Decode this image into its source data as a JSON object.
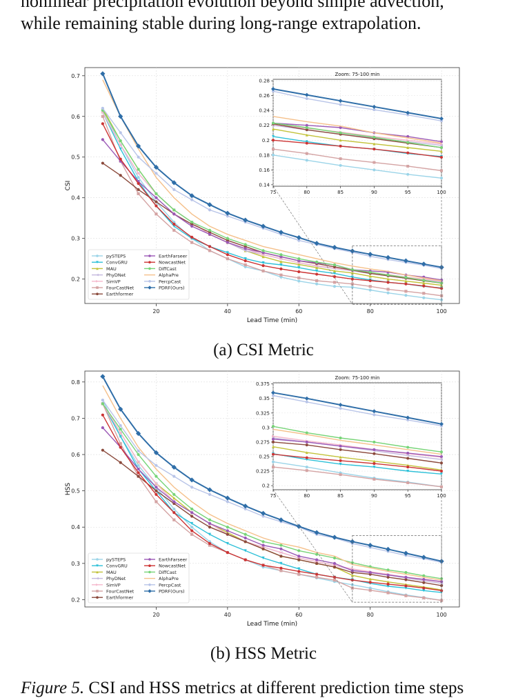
{
  "top_text": [
    "nonlinear precipitation evolution beyond simple advection,",
    "while remaining stable during long-range extrapolation."
  ],
  "captions": {
    "a": "(a) CSI Metric",
    "b": "(b) HSS Metric"
  },
  "figure_caption": {
    "label": "Figure 5.",
    "text": " CSI and HSS metrics at different prediction time steps"
  },
  "chart_data": [
    {
      "type": "line",
      "id": "csi",
      "ylabel": "CSI",
      "xlabel": "Lead Time (min)",
      "xlim": [
        0,
        105
      ],
      "ylim": [
        0.14,
        0.72
      ],
      "xticks": [
        20,
        40,
        60,
        80,
        100
      ],
      "yticks": [
        0.2,
        0.3,
        0.4,
        0.5,
        0.6,
        0.7
      ],
      "grid": true,
      "legend": "lower-left",
      "inset": {
        "title": "Zoom: 75-100 min",
        "xlim": [
          75,
          100
        ],
        "ylim": [
          0.138,
          0.282
        ],
        "xticks": [
          75,
          80,
          85,
          90,
          95,
          100
        ],
        "yticks": [
          0.14,
          0.16,
          0.18,
          0.2,
          0.22,
          0.24,
          0.26,
          0.28
        ]
      },
      "x": [
        5,
        10,
        15,
        20,
        25,
        30,
        35,
        40,
        45,
        50,
        55,
        60,
        65,
        70,
        75,
        80,
        85,
        90,
        95,
        100
      ],
      "series": [
        {
          "name": "pySTEPS",
          "color": "#9bd4e8",
          "marker": "o",
          "values": [
            0.62,
            0.53,
            0.45,
            0.39,
            0.34,
            0.3,
            0.27,
            0.25,
            0.23,
            0.22,
            0.205,
            0.195,
            0.188,
            0.182,
            0.18,
            0.173,
            0.166,
            0.16,
            0.154,
            0.149
          ]
        },
        {
          "name": "ConvGRU",
          "color": "#2ec0d8",
          "marker": "v",
          "values": [
            0.61,
            0.52,
            0.44,
            0.38,
            0.33,
            0.3,
            0.28,
            0.265,
            0.25,
            0.24,
            0.235,
            0.228,
            0.22,
            0.214,
            0.205,
            0.198,
            0.192,
            0.188,
            0.182,
            0.178
          ]
        },
        {
          "name": "MAU",
          "color": "#c2c23a",
          "marker": "^",
          "values": [
            0.62,
            0.54,
            0.47,
            0.41,
            0.37,
            0.34,
            0.31,
            0.29,
            0.27,
            0.255,
            0.243,
            0.236,
            0.228,
            0.22,
            0.215,
            0.207,
            0.2,
            0.195,
            0.19,
            0.185
          ]
        },
        {
          "name": "PhyDNet",
          "color": "#c4b8de",
          "marker": "<",
          "values": [
            0.61,
            0.53,
            0.46,
            0.41,
            0.37,
            0.34,
            0.31,
            0.29,
            0.27,
            0.26,
            0.25,
            0.24,
            0.232,
            0.226,
            0.22,
            0.214,
            0.208,
            0.203,
            0.198,
            0.193
          ]
        },
        {
          "name": "SimVP",
          "color": "#f5b8cc",
          "marker": ">",
          "values": [
            0.61,
            0.53,
            0.46,
            0.41,
            0.37,
            0.34,
            0.31,
            0.29,
            0.275,
            0.26,
            0.25,
            0.24,
            0.233,
            0.227,
            0.221,
            0.216,
            0.211,
            0.205,
            0.2,
            0.195
          ]
        },
        {
          "name": "FourCastNet",
          "color": "#d4a3a3",
          "marker": "s",
          "values": [
            0.6,
            0.49,
            0.41,
            0.36,
            0.32,
            0.29,
            0.27,
            0.25,
            0.235,
            0.22,
            0.21,
            0.203,
            0.196,
            0.192,
            0.188,
            0.182,
            0.175,
            0.17,
            0.165,
            0.159
          ]
        },
        {
          "name": "Earthformer",
          "color": "#8b4a3c",
          "marker": "o",
          "values": [
            0.485,
            0.455,
            0.42,
            0.39,
            0.36,
            0.335,
            0.315,
            0.295,
            0.28,
            0.265,
            0.255,
            0.245,
            0.238,
            0.23,
            0.222,
            0.214,
            0.208,
            0.202,
            0.196,
            0.19
          ]
        },
        {
          "name": "EarthFarseer",
          "color": "#9b59b6",
          "marker": "o",
          "values": [
            0.543,
            0.49,
            0.44,
            0.4,
            0.36,
            0.33,
            0.31,
            0.29,
            0.275,
            0.265,
            0.255,
            0.245,
            0.24,
            0.235,
            0.223,
            0.22,
            0.217,
            0.21,
            0.205,
            0.198
          ]
        },
        {
          "name": "NowcastNet",
          "color": "#cc3333",
          "marker": "o",
          "values": [
            0.582,
            0.495,
            0.435,
            0.38,
            0.335,
            0.303,
            0.28,
            0.26,
            0.245,
            0.233,
            0.225,
            0.218,
            0.212,
            0.206,
            0.2,
            0.196,
            0.192,
            0.188,
            0.183,
            0.177
          ]
        },
        {
          "name": "DiffCast",
          "color": "#77d477",
          "marker": "o",
          "values": [
            0.615,
            0.54,
            0.47,
            0.41,
            0.37,
            0.34,
            0.32,
            0.3,
            0.285,
            0.27,
            0.26,
            0.25,
            0.242,
            0.235,
            0.223,
            0.217,
            0.21,
            0.204,
            0.197,
            0.19
          ]
        },
        {
          "name": "AlphaPre",
          "color": "#f5c08a",
          "marker": "",
          "values": [
            0.69,
            0.6,
            0.52,
            0.45,
            0.4,
            0.36,
            0.33,
            0.31,
            0.295,
            0.28,
            0.27,
            0.26,
            0.25,
            0.24,
            0.232,
            0.225,
            0.219,
            0.21,
            0.203,
            0.196
          ]
        },
        {
          "name": "PercpCast",
          "color": "#b8c4e8",
          "marker": "o",
          "values": [
            0.62,
            0.56,
            0.5,
            0.46,
            0.42,
            0.395,
            0.37,
            0.355,
            0.34,
            0.325,
            0.31,
            0.295,
            0.285,
            0.275,
            0.266,
            0.256,
            0.248,
            0.241,
            0.234,
            0.226
          ]
        },
        {
          "name": "PDRF(Ours)",
          "color": "#2f6ea8",
          "marker": "D",
          "values": [
            0.705,
            0.6,
            0.527,
            0.475,
            0.437,
            0.405,
            0.383,
            0.362,
            0.345,
            0.33,
            0.315,
            0.302,
            0.288,
            0.278,
            0.269,
            0.261,
            0.253,
            0.245,
            0.237,
            0.229
          ]
        }
      ]
    },
    {
      "type": "line",
      "id": "hss",
      "ylabel": "HSS",
      "xlabel": "Lead Time (min)",
      "xlim": [
        0,
        105
      ],
      "ylim": [
        0.18,
        0.83
      ],
      "xticks": [
        20,
        40,
        60,
        80,
        100
      ],
      "yticks": [
        0.2,
        0.3,
        0.4,
        0.5,
        0.6,
        0.7,
        0.8
      ],
      "grid": true,
      "legend": "lower-left",
      "inset": {
        "title": "Zoom: 75-100 min",
        "xlim": [
          75,
          100
        ],
        "ylim": [
          0.193,
          0.377
        ],
        "xticks": [
          75,
          80,
          85,
          90,
          95,
          100
        ],
        "yticks": [
          0.2,
          0.225,
          0.25,
          0.275,
          0.3,
          0.325,
          0.35,
          0.375
        ]
      },
      "x": [
        5,
        10,
        15,
        20,
        25,
        30,
        35,
        40,
        45,
        50,
        55,
        60,
        65,
        70,
        75,
        80,
        85,
        90,
        95,
        100
      ],
      "series": [
        {
          "name": "pySTEPS",
          "color": "#9bd4e8",
          "marker": "o",
          "values": [
            0.75,
            0.65,
            0.57,
            0.51,
            0.45,
            0.4,
            0.36,
            0.33,
            0.31,
            0.29,
            0.28,
            0.27,
            0.26,
            0.25,
            0.241,
            0.232,
            0.222,
            0.213,
            0.206,
            0.198
          ]
        },
        {
          "name": "ConvGRU",
          "color": "#2ec0d8",
          "marker": "v",
          "values": [
            0.74,
            0.65,
            0.56,
            0.5,
            0.44,
            0.41,
            0.38,
            0.355,
            0.335,
            0.315,
            0.3,
            0.285,
            0.27,
            0.262,
            0.255,
            0.245,
            0.237,
            0.232,
            0.225,
            0.22
          ]
        },
        {
          "name": "MAU",
          "color": "#c2c23a",
          "marker": "^",
          "values": [
            0.74,
            0.66,
            0.58,
            0.52,
            0.48,
            0.44,
            0.41,
            0.385,
            0.36,
            0.34,
            0.32,
            0.31,
            0.3,
            0.29,
            0.267,
            0.257,
            0.249,
            0.242,
            0.235,
            0.227
          ]
        },
        {
          "name": "PhyDNet",
          "color": "#c4b8de",
          "marker": "<",
          "values": [
            0.74,
            0.66,
            0.58,
            0.52,
            0.47,
            0.44,
            0.41,
            0.38,
            0.36,
            0.345,
            0.33,
            0.315,
            0.305,
            0.295,
            0.282,
            0.275,
            0.268,
            0.26,
            0.252,
            0.245
          ]
        },
        {
          "name": "SimVP",
          "color": "#f5b8cc",
          "marker": ">",
          "values": [
            0.74,
            0.66,
            0.58,
            0.52,
            0.47,
            0.44,
            0.41,
            0.38,
            0.36,
            0.345,
            0.33,
            0.315,
            0.305,
            0.295,
            0.285,
            0.277,
            0.27,
            0.262,
            0.255,
            0.249
          ]
        },
        {
          "name": "FourCastNet",
          "color": "#d4a3a3",
          "marker": "s",
          "values": [
            0.74,
            0.63,
            0.54,
            0.47,
            0.42,
            0.38,
            0.35,
            0.33,
            0.31,
            0.295,
            0.28,
            0.27,
            0.262,
            0.254,
            0.232,
            0.226,
            0.219,
            0.211,
            0.205,
            0.198
          ]
        },
        {
          "name": "Earthformer",
          "color": "#8b4a3c",
          "marker": "o",
          "values": [
            0.612,
            0.578,
            0.54,
            0.5,
            0.465,
            0.43,
            0.4,
            0.38,
            0.36,
            0.34,
            0.32,
            0.31,
            0.3,
            0.29,
            0.275,
            0.27,
            0.262,
            0.255,
            0.247,
            0.239
          ]
        },
        {
          "name": "EarthFarseer",
          "color": "#9b59b6",
          "marker": "o",
          "values": [
            0.674,
            0.62,
            0.56,
            0.51,
            0.47,
            0.44,
            0.41,
            0.39,
            0.37,
            0.35,
            0.34,
            0.32,
            0.31,
            0.3,
            0.28,
            0.275,
            0.268,
            0.262,
            0.256,
            0.25
          ]
        },
        {
          "name": "NowcastNet",
          "color": "#cc3333",
          "marker": "o",
          "values": [
            0.709,
            0.62,
            0.55,
            0.49,
            0.44,
            0.39,
            0.355,
            0.33,
            0.31,
            0.295,
            0.287,
            0.278,
            0.27,
            0.262,
            0.254,
            0.248,
            0.243,
            0.238,
            0.232,
            0.225
          ]
        },
        {
          "name": "DiffCast",
          "color": "#77d477",
          "marker": "o",
          "values": [
            0.74,
            0.67,
            0.6,
            0.54,
            0.49,
            0.45,
            0.42,
            0.4,
            0.38,
            0.36,
            0.35,
            0.335,
            0.325,
            0.315,
            0.302,
            0.291,
            0.282,
            0.275,
            0.266,
            0.258
          ]
        },
        {
          "name": "AlphaPre",
          "color": "#f5c08a",
          "marker": "",
          "values": [
            0.79,
            0.7,
            0.62,
            0.56,
            0.51,
            0.47,
            0.435,
            0.41,
            0.39,
            0.37,
            0.355,
            0.345,
            0.33,
            0.32,
            0.297,
            0.288,
            0.278,
            0.27,
            0.262,
            0.254
          ]
        },
        {
          "name": "PercpCast",
          "color": "#b8c4e8",
          "marker": "o",
          "values": [
            0.75,
            0.68,
            0.61,
            0.57,
            0.54,
            0.51,
            0.49,
            0.47,
            0.45,
            0.43,
            0.415,
            0.4,
            0.38,
            0.37,
            0.355,
            0.344,
            0.333,
            0.322,
            0.313,
            0.303
          ]
        },
        {
          "name": "PDRF(Ours)",
          "color": "#2f6ea8",
          "marker": "D",
          "values": [
            0.815,
            0.725,
            0.658,
            0.605,
            0.565,
            0.53,
            0.503,
            0.48,
            0.458,
            0.438,
            0.42,
            0.402,
            0.385,
            0.372,
            0.36,
            0.35,
            0.339,
            0.328,
            0.317,
            0.306
          ]
        }
      ]
    }
  ]
}
